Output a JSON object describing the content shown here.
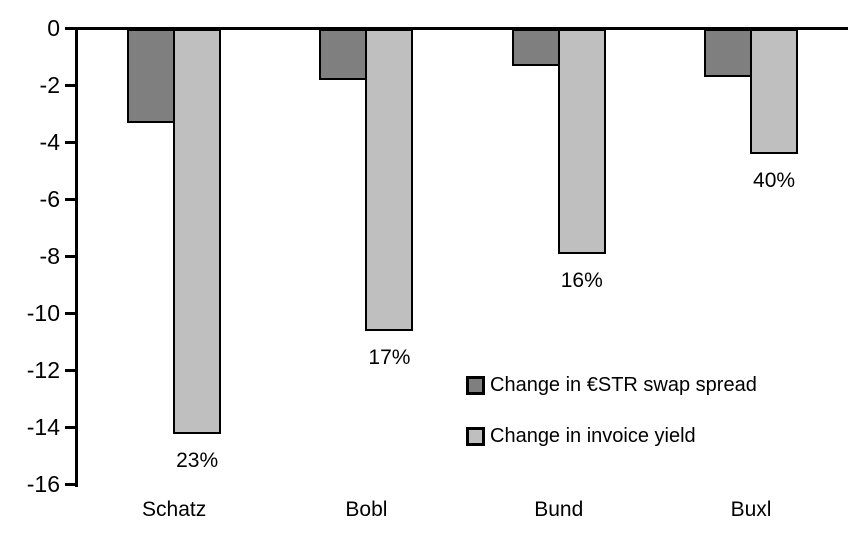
{
  "chart_data": {
    "type": "bar",
    "categories": [
      "Schatz",
      "Bobl",
      "Bund",
      "Buxl"
    ],
    "series": [
      {
        "name": "Change in €STR swap spread",
        "color": "#7f7f7f",
        "values": [
          -3.3,
          -1.8,
          -1.3,
          -1.7
        ]
      },
      {
        "name": "Change in invoice yield",
        "color": "#bfbfbf",
        "values": [
          -14.2,
          -10.6,
          -7.9,
          -4.4
        ],
        "labels": [
          "23%",
          "17%",
          "16%",
          "40%"
        ]
      }
    ],
    "title": "",
    "xlabel": "",
    "ylabel": "",
    "ylim": [
      -16,
      0
    ],
    "yticks": [
      0,
      -2,
      -4,
      -6,
      -8,
      -10,
      -12,
      -14,
      -16
    ],
    "grid": false,
    "legend_position": "inside-center-right",
    "axis_color": "#000000",
    "background": "#ffffff"
  }
}
